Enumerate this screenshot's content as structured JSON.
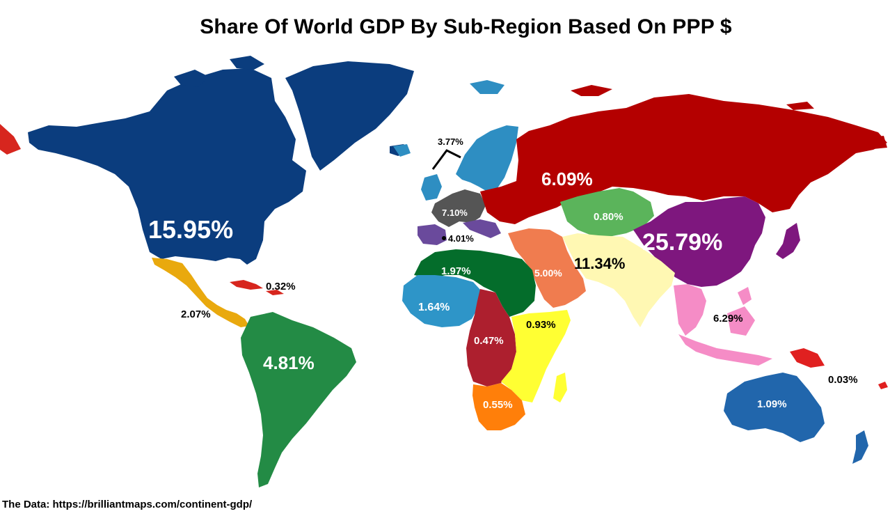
{
  "title": "Share Of World GDP By Sub-Region Based On PPP $",
  "source": "The Data: https://brilliantmaps.com/continent-gdp/",
  "regions": [
    {
      "id": "northern-america",
      "share": "15.95%",
      "color": "#0b3d7e"
    },
    {
      "id": "central-america",
      "share": "2.07%",
      "color": "#e9a90e"
    },
    {
      "id": "caribbean",
      "share": "0.32%",
      "color": "#d7261e"
    },
    {
      "id": "south-america",
      "share": "4.81%",
      "color": "#238b45"
    },
    {
      "id": "northern-europe",
      "share": "3.77%",
      "color": "#2e8ec2"
    },
    {
      "id": "western-europe",
      "share": "7.10%",
      "color": "#555555"
    },
    {
      "id": "southern-europe",
      "share": "4.01%",
      "color": "#6a4a9c"
    },
    {
      "id": "eastern-europe",
      "share": "6.09%",
      "color": "#b40000"
    },
    {
      "id": "central-asia",
      "share": "0.80%",
      "color": "#5bb45b"
    },
    {
      "id": "eastern-asia",
      "share": "25.79%",
      "color": "#7e177e"
    },
    {
      "id": "western-asia",
      "share": "5.00%",
      "color": "#f07c4f"
    },
    {
      "id": "southern-asia",
      "share": "11.34%",
      "color": "#fff8b3"
    },
    {
      "id": "south-eastern-asia",
      "share": "6.29%",
      "color": "#f58cc6"
    },
    {
      "id": "northern-africa",
      "share": "1.97%",
      "color": "#046d2b"
    },
    {
      "id": "western-africa",
      "share": "1.64%",
      "color": "#2e95c8"
    },
    {
      "id": "middle-africa",
      "share": "0.47%",
      "color": "#ad1f2e"
    },
    {
      "id": "eastern-africa",
      "share": "0.93%",
      "color": "#ffff33"
    },
    {
      "id": "southern-africa",
      "share": "0.55%",
      "color": "#ff7f0a"
    },
    {
      "id": "australia-new-zealand",
      "share": "1.09%",
      "color": "#2166ac"
    },
    {
      "id": "oceania-other",
      "share": "0.03%",
      "color": "#e02020"
    }
  ]
}
